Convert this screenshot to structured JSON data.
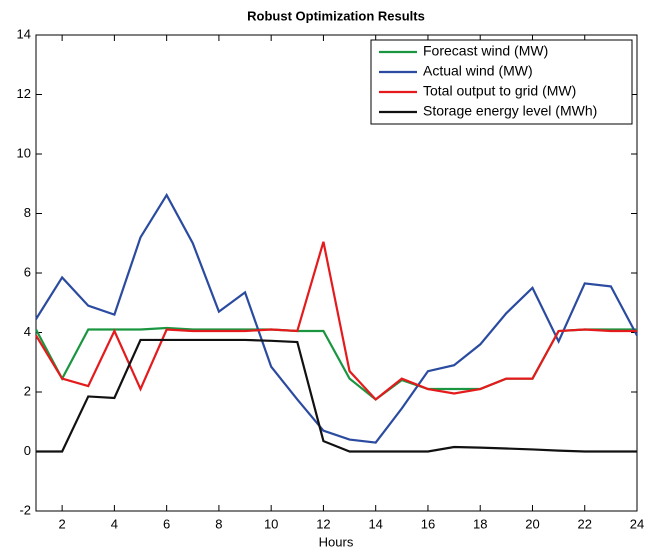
{
  "chart_data": {
    "type": "line",
    "title": "Robust Optimization Results",
    "x_label": "Hours",
    "x": [
      1,
      2,
      3,
      4,
      5,
      6,
      7,
      8,
      9,
      10,
      11,
      12,
      13,
      14,
      15,
      16,
      17,
      18,
      19,
      20,
      21,
      22,
      23,
      24
    ],
    "series": [
      {
        "name": "Forecast wind (MW)",
        "color": "#1a9641",
        "values": [
          4.1,
          2.45,
          4.1,
          4.1,
          4.1,
          4.15,
          4.1,
          4.1,
          4.1,
          4.1,
          4.05,
          4.05,
          2.45,
          1.75,
          2.4,
          2.1,
          2.1,
          2.1,
          2.45,
          2.45,
          4.05,
          4.1,
          4.1,
          4.1
        ]
      },
      {
        "name": "Actual wind (MW)",
        "color": "#2b4ba0",
        "values": [
          4.45,
          5.85,
          4.9,
          4.6,
          7.2,
          8.62,
          7.0,
          4.7,
          5.35,
          2.85,
          1.75,
          0.7,
          0.4,
          0.3,
          1.45,
          2.7,
          2.9,
          3.6,
          4.65,
          5.5,
          3.7,
          5.65,
          5.55,
          3.9
        ]
      },
      {
        "name": "Total output to grid (MW)",
        "color": "#e41a1c",
        "values": [
          3.9,
          2.45,
          2.2,
          4.05,
          2.1,
          4.1,
          4.05,
          4.05,
          4.05,
          4.1,
          4.05,
          7.05,
          2.7,
          1.75,
          2.45,
          2.1,
          1.95,
          2.1,
          2.45,
          2.45,
          4.05,
          4.1,
          4.05,
          4.05
        ]
      },
      {
        "name": "Storage energy level (MWh)",
        "color": "#111111",
        "values": [
          0,
          0,
          1.85,
          1.8,
          3.75,
          3.75,
          3.75,
          3.75,
          3.75,
          3.72,
          3.68,
          0.35,
          0,
          0,
          0,
          0,
          0.15,
          0.13,
          0.1,
          0.07,
          0.03,
          0,
          0,
          0
        ]
      }
    ],
    "xlim": [
      1,
      24
    ],
    "xticks": [
      2,
      4,
      6,
      8,
      10,
      12,
      14,
      16,
      18,
      20,
      22,
      24
    ],
    "ylim": [
      -2,
      14
    ],
    "yticks": [
      -2,
      0,
      2,
      4,
      6,
      8,
      10,
      12,
      14
    ],
    "legend": "upper-right"
  }
}
